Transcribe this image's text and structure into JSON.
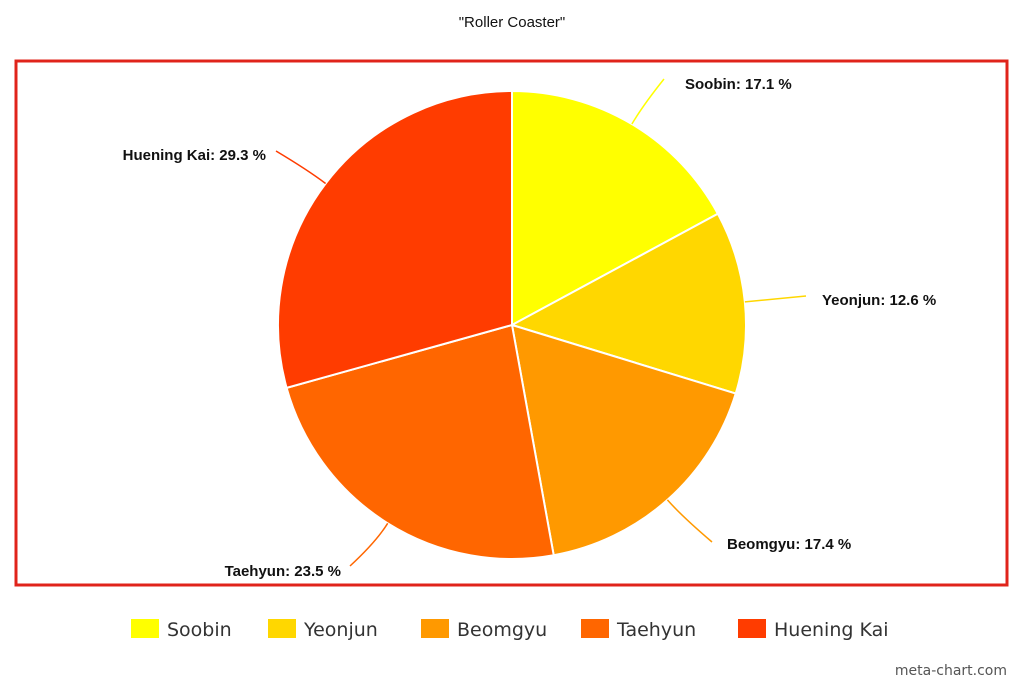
{
  "chart_data": {
    "type": "pie",
    "title": "\"Roller Coaster\"",
    "slices": [
      {
        "label": "Soobin",
        "value": 17.1,
        "display": "Soobin: 17.1 %",
        "color": "#FFFF00"
      },
      {
        "label": "Yeonjun",
        "value": 12.6,
        "display": "Yeonjun: 12.6 %",
        "color": "#FFD700"
      },
      {
        "label": "Beomgyu",
        "value": 17.4,
        "display": "Beomgyu: 17.4 %",
        "color": "#FF9900"
      },
      {
        "label": "Taehyun",
        "value": 23.5,
        "display": "Taehyun: 23.5 %",
        "color": "#FF6600"
      },
      {
        "label": "Huening Kai",
        "value": 29.3,
        "display": "Huening Kai: 29.3 %",
        "color": "#FF3C00"
      }
    ],
    "legend_position": "bottom",
    "frame_color": "#E0241B"
  },
  "watermark": "meta-chart.com"
}
